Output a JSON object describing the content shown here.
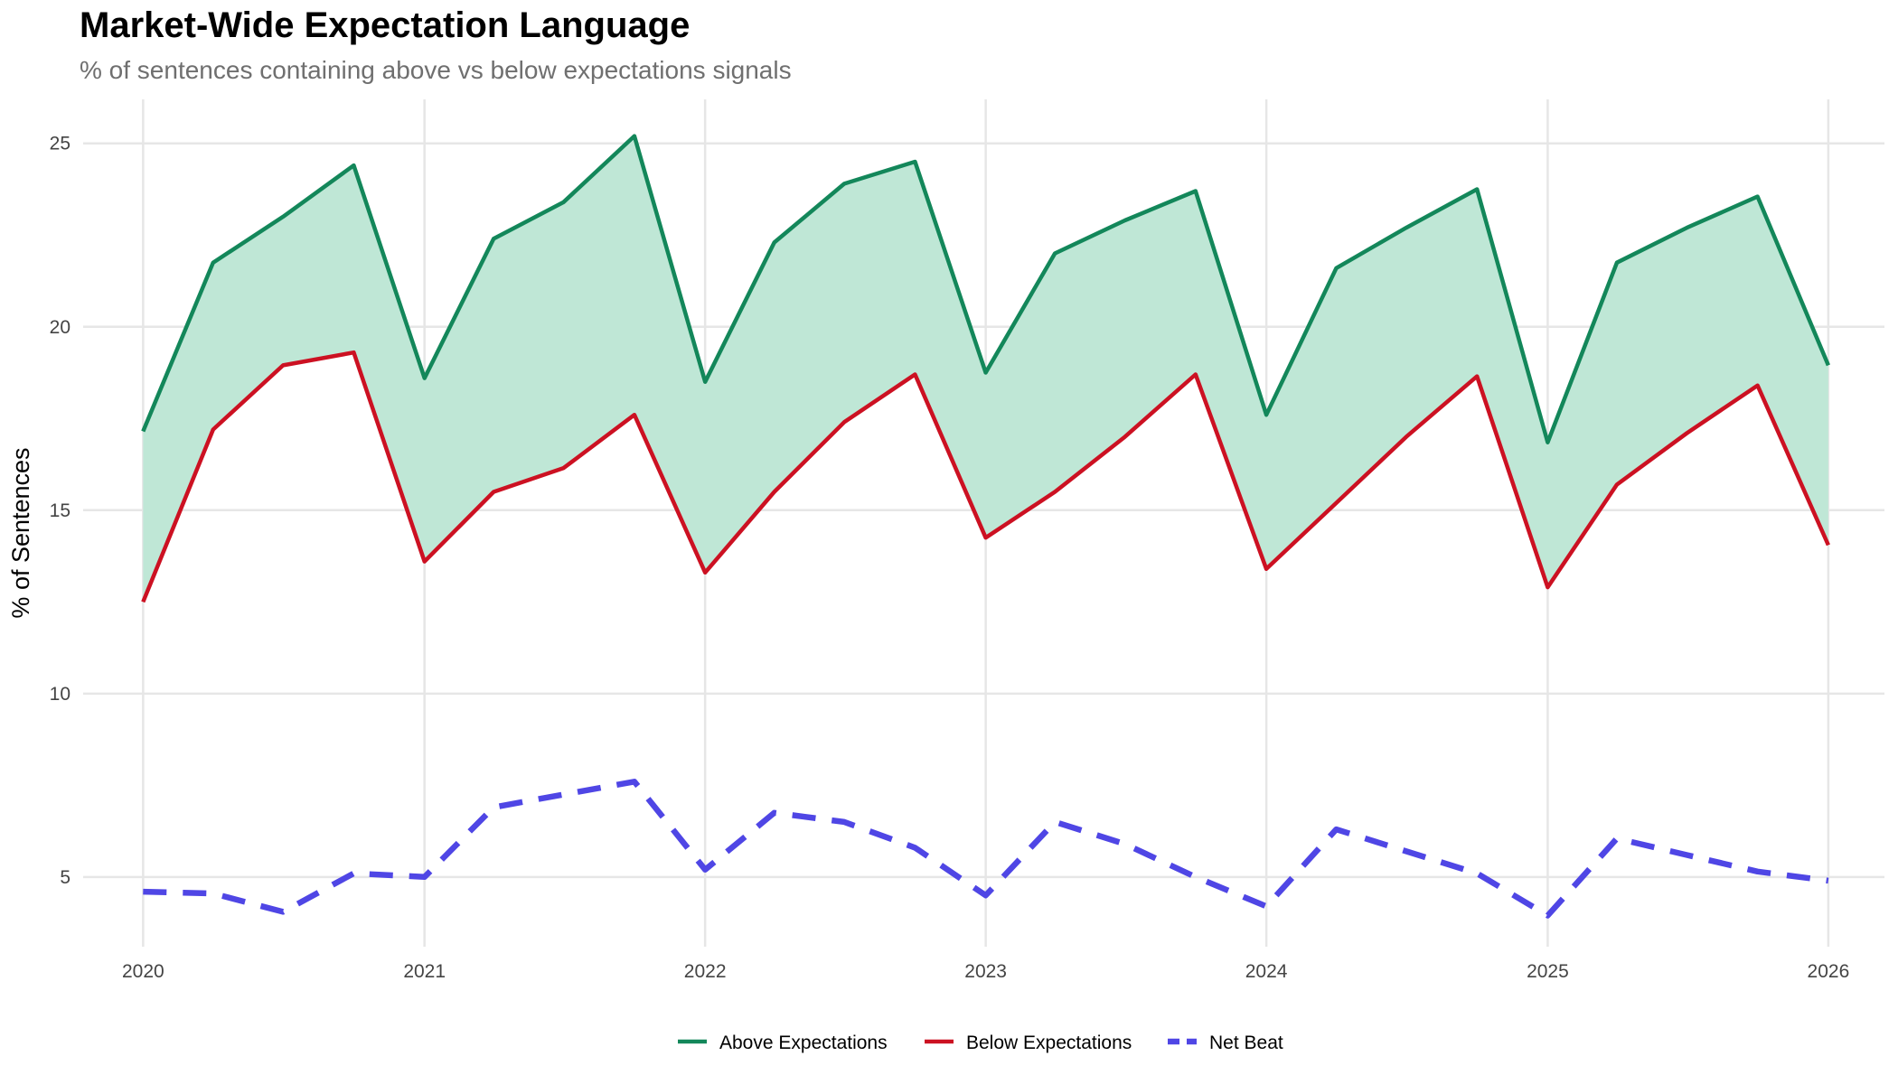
{
  "chart_data": {
    "type": "line",
    "title": "Market-Wide Expectation Language",
    "subtitle": "% of sentences containing above vs below expectations signals",
    "xlabel": "",
    "ylabel": "% of Sentences",
    "x": [
      "2020-01-01",
      "2020-04-01",
      "2020-07-01",
      "2020-10-01",
      "2021-01-01",
      "2021-04-01",
      "2021-07-01",
      "2021-10-01",
      "2022-01-01",
      "2022-04-01",
      "2022-07-01",
      "2022-10-01",
      "2023-01-01",
      "2023-04-01",
      "2023-07-01",
      "2023-10-01",
      "2024-01-01",
      "2024-04-01",
      "2024-07-01",
      "2024-10-01",
      "2025-01-01",
      "2025-04-01",
      "2025-07-01",
      "2025-10-01",
      "2026-01-01"
    ],
    "x_ticks": [
      "2020",
      "2021",
      "2022",
      "2023",
      "2024",
      "2025",
      "2026"
    ],
    "y_ticks": [
      5,
      10,
      15,
      20,
      25
    ],
    "ylim": [
      3.1,
      26.2
    ],
    "xlim": [
      "2019-10-15",
      "2026-03-15"
    ],
    "grid": true,
    "legend_position": "bottom",
    "fill_between": [
      "Above Expectations",
      "Below Expectations"
    ],
    "fill_color": "#bfe7d6",
    "series": [
      {
        "name": "Above Expectations",
        "color": "#13875a",
        "dash": "solid",
        "values": [
          17.15,
          21.75,
          23.0,
          24.4,
          18.6,
          22.4,
          23.4,
          25.2,
          18.5,
          22.3,
          23.9,
          24.5,
          18.75,
          22.0,
          22.9,
          23.7,
          17.6,
          21.6,
          22.7,
          23.75,
          16.85,
          21.75,
          22.7,
          23.55,
          18.95
        ]
      },
      {
        "name": "Below Expectations",
        "color": "#cc1122",
        "dash": "solid",
        "values": [
          12.5,
          17.2,
          18.95,
          19.3,
          13.6,
          15.5,
          16.15,
          17.6,
          13.3,
          15.5,
          17.4,
          18.7,
          14.25,
          15.5,
          17.0,
          18.7,
          13.4,
          15.2,
          17.0,
          18.65,
          12.9,
          15.7,
          17.1,
          18.4,
          14.05
        ]
      },
      {
        "name": "Net Beat",
        "color": "#4f46e5",
        "dash": "dashed",
        "values": [
          4.6,
          4.55,
          4.05,
          5.1,
          5.0,
          6.9,
          7.25,
          7.6,
          5.2,
          6.75,
          6.5,
          5.8,
          4.5,
          6.5,
          5.9,
          5.0,
          4.2,
          6.3,
          5.7,
          5.1,
          3.95,
          6.05,
          5.6,
          5.15,
          4.9
        ]
      }
    ]
  }
}
